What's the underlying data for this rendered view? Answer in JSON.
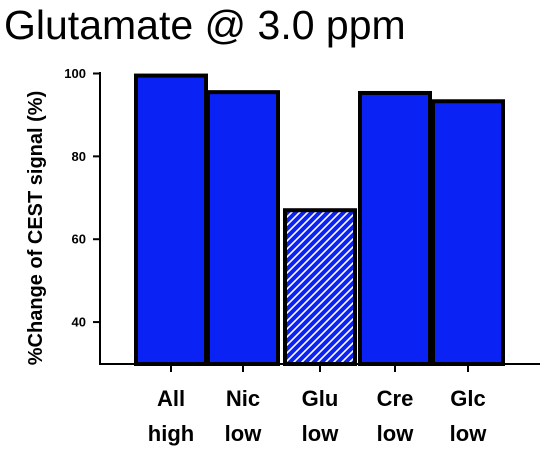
{
  "chart_data": {
    "type": "bar",
    "title": "Glutamate @ 3.0 ppm",
    "ylabel": "%Change of CEST signal (%)",
    "xlabel": "",
    "categories": [
      [
        "All",
        "high"
      ],
      [
        "Nic",
        "low"
      ],
      [
        "Glu",
        "low"
      ],
      [
        "Cre",
        "low"
      ],
      [
        "Glc",
        "low"
      ]
    ],
    "values": [
      99.5,
      95.5,
      67,
      95.3,
      93.3
    ],
    "hatched": [
      false,
      false,
      true,
      false,
      false
    ],
    "ylim": [
      30,
      100
    ],
    "yticks": [
      40,
      60,
      80,
      100
    ],
    "grid": false,
    "legend": "none",
    "colors": {
      "bar": "#0b22f5",
      "hatch_line": "#ffffff",
      "outline": "#000000"
    }
  }
}
